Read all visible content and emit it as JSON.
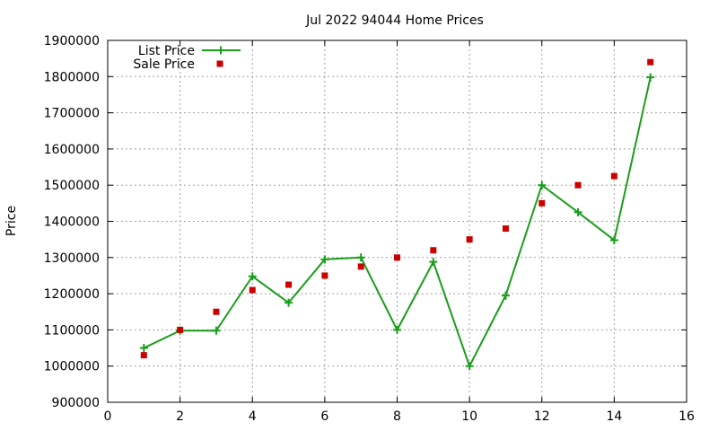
{
  "chart_data": {
    "type": "line",
    "title": "Jul 2022 94044 Home Prices",
    "xlabel": "",
    "ylabel": "Price",
    "xlim": [
      0,
      16
    ],
    "ylim": [
      900000,
      1900000
    ],
    "x_ticks": [
      0,
      2,
      4,
      6,
      8,
      10,
      12,
      14,
      16
    ],
    "y_ticks": [
      900000,
      1000000,
      1100000,
      1200000,
      1300000,
      1400000,
      1500000,
      1600000,
      1700000,
      1800000,
      1900000
    ],
    "grid": true,
    "legend_position": "top-left",
    "series": [
      {
        "name": "List Price",
        "style": "linespoints",
        "color": "#1a9e1a",
        "marker": "plus",
        "x": [
          1,
          2,
          3,
          4,
          5,
          6,
          7,
          8,
          9,
          10,
          11,
          12,
          13,
          14,
          15
        ],
        "values": [
          1050000,
          1098000,
          1098000,
          1248000,
          1175000,
          1295000,
          1300000,
          1100000,
          1288000,
          1000000,
          1195000,
          1500000,
          1425000,
          1348000,
          1798000
        ]
      },
      {
        "name": "Sale Price",
        "style": "points",
        "color": "#cc0000",
        "marker": "square",
        "x": [
          1,
          2,
          3,
          4,
          5,
          6,
          7,
          8,
          9,
          10,
          11,
          12,
          13,
          14,
          15
        ],
        "values": [
          1030000,
          1100000,
          1150000,
          1210000,
          1225000,
          1250000,
          1275000,
          1300000,
          1320000,
          1350000,
          1380000,
          1450000,
          1500000,
          1525000,
          1840000
        ]
      }
    ]
  }
}
